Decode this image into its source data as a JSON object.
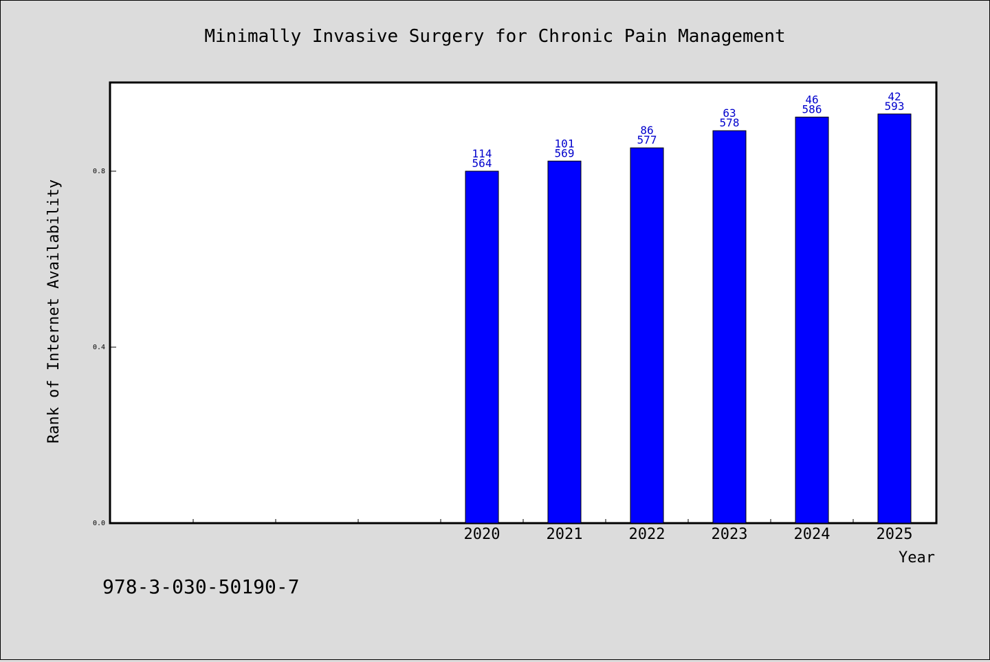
{
  "chart_data": {
    "type": "bar",
    "title": "Minimally Invasive Surgery for Chronic Pain Management",
    "xlabel": "Year",
    "ylabel": "Rank of Internet Availability",
    "footer_code": "978-3-030-50190-7",
    "categories": [
      "",
      "",
      "",
      "",
      "2020",
      "2021",
      "2022",
      "2023",
      "2024",
      "2025"
    ],
    "values": [
      null,
      null,
      null,
      null,
      0.8,
      0.823,
      0.853,
      0.892,
      0.923,
      0.93
    ],
    "label_top": [
      "",
      "",
      "",
      "",
      "114",
      "101",
      "86",
      "63",
      "46",
      "42"
    ],
    "label_bottom": [
      "",
      "",
      "",
      "",
      "564",
      "569",
      "577",
      "578",
      "586",
      "593"
    ],
    "ylim": [
      0,
      1.0
    ],
    "yticks": [
      0.0,
      0.4,
      0.8
    ],
    "ytick_labels": [
      "0.0",
      "0.4",
      "0.8"
    ],
    "grid": false,
    "colors": {
      "bar": "#0000ff",
      "bar_edge": "#000000",
      "value_label": "#0000cc",
      "plot_bg": "#ffffff",
      "page_bg": "#dcdcdc"
    }
  }
}
